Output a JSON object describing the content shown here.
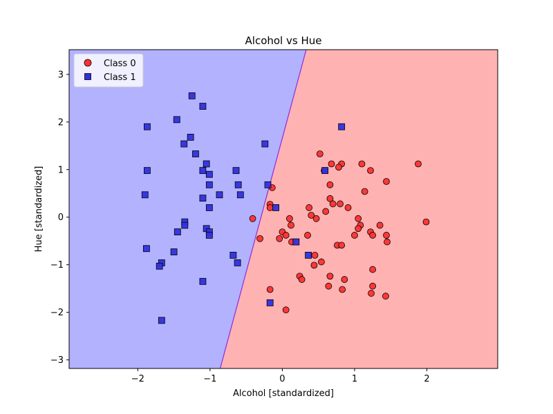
{
  "chart_data": {
    "type": "scatter",
    "title": "Alcohol vs Hue",
    "xlabel": "Alcohol [standardized]",
    "ylabel": "Hue [standardized]",
    "xlim": [
      -2.95,
      2.98
    ],
    "ylim": [
      -3.18,
      3.52
    ],
    "xticks": [
      -2,
      -1,
      0,
      1,
      2
    ],
    "yticks": [
      -3,
      -2,
      -1,
      0,
      1,
      2,
      3
    ],
    "tick_labels_x": [
      "−2",
      "−1",
      "0",
      "1",
      "2"
    ],
    "tick_labels_y": [
      "−3",
      "−2",
      "−1",
      "0",
      "1",
      "2",
      "3"
    ],
    "grid": false,
    "legend_position": "top-left",
    "decision_regions": {
      "boundary": [
        [
          -0.86,
          -3.18
        ],
        [
          0.33,
          3.52
        ]
      ],
      "class0_color": "#ffb2b2",
      "class1_color": "#b2b2ff",
      "boundary_color": "#8a2be2"
    },
    "series": [
      {
        "name": "Class 0",
        "marker": "circle",
        "color": "#ff3030",
        "points": [
          [
            0.52,
            1.33
          ],
          [
            1.88,
            1.12
          ],
          [
            1.1,
            1.12
          ],
          [
            0.82,
            1.12
          ],
          [
            0.68,
            1.12
          ],
          [
            0.78,
            1.05
          ],
          [
            1.22,
            0.98
          ],
          [
            0.58,
            0.98
          ],
          [
            0.66,
            0.68
          ],
          [
            1.14,
            0.54
          ],
          [
            1.44,
            0.75
          ],
          [
            -0.14,
            0.62
          ],
          [
            0.66,
            0.39
          ],
          [
            0.7,
            0.28
          ],
          [
            0.8,
            0.28
          ],
          [
            0.91,
            0.2
          ],
          [
            0.37,
            0.2
          ],
          [
            -0.17,
            0.27
          ],
          [
            -0.17,
            0.2
          ],
          [
            0.6,
            0.12
          ],
          [
            0.4,
            0.04
          ],
          [
            0.47,
            -0.03
          ],
          [
            -0.41,
            -0.03
          ],
          [
            0.1,
            -0.03
          ],
          [
            1.05,
            -0.03
          ],
          [
            1.08,
            -0.17
          ],
          [
            1.35,
            -0.17
          ],
          [
            0.12,
            -0.17
          ],
          [
            1.05,
            -0.24
          ],
          [
            0.0,
            -0.31
          ],
          [
            1.22,
            -0.31
          ],
          [
            0.05,
            -0.38
          ],
          [
            0.35,
            -0.38
          ],
          [
            1.0,
            -0.38
          ],
          [
            1.25,
            -0.38
          ],
          [
            1.44,
            -0.38
          ],
          [
            -0.31,
            -0.45
          ],
          [
            -0.04,
            -0.45
          ],
          [
            0.13,
            -0.52
          ],
          [
            1.45,
            -0.52
          ],
          [
            0.76,
            -0.59
          ],
          [
            0.82,
            -0.59
          ],
          [
            0.45,
            -0.8
          ],
          [
            0.54,
            -0.94
          ],
          [
            0.44,
            -1.01
          ],
          [
            1.25,
            -1.1
          ],
          [
            0.66,
            -1.24
          ],
          [
            0.24,
            -1.24
          ],
          [
            0.27,
            -1.31
          ],
          [
            0.86,
            -1.31
          ],
          [
            0.64,
            -1.45
          ],
          [
            1.25,
            -1.45
          ],
          [
            -0.17,
            -1.52
          ],
          [
            0.83,
            -1.52
          ],
          [
            1.23,
            -1.6
          ],
          [
            1.43,
            -1.66
          ],
          [
            0.05,
            -1.95
          ],
          [
            1.99,
            -0.1
          ]
        ]
      },
      {
        "name": "Class 1",
        "marker": "square",
        "color": "#3030e0",
        "points": [
          [
            -1.25,
            2.55
          ],
          [
            -1.1,
            2.33
          ],
          [
            -1.46,
            2.05
          ],
          [
            -1.87,
            1.9
          ],
          [
            0.82,
            1.9
          ],
          [
            -1.27,
            1.68
          ],
          [
            -1.36,
            1.54
          ],
          [
            -0.24,
            1.54
          ],
          [
            -1.2,
            1.33
          ],
          [
            -1.05,
            1.12
          ],
          [
            -1.87,
            0.98
          ],
          [
            -1.1,
            0.98
          ],
          [
            -0.64,
            0.98
          ],
          [
            0.59,
            0.98
          ],
          [
            -1.01,
            0.9
          ],
          [
            -0.61,
            0.68
          ],
          [
            -1.01,
            0.68
          ],
          [
            -0.2,
            0.68
          ],
          [
            -1.9,
            0.47
          ],
          [
            -0.87,
            0.47
          ],
          [
            -0.58,
            0.47
          ],
          [
            -1.1,
            0.4
          ],
          [
            -1.01,
            0.2
          ],
          [
            -0.09,
            0.2
          ],
          [
            -1.35,
            -0.1
          ],
          [
            -1.35,
            -0.17
          ],
          [
            -1.05,
            -0.24
          ],
          [
            -1.45,
            -0.31
          ],
          [
            -1.01,
            -0.31
          ],
          [
            -1.01,
            -0.38
          ],
          [
            0.19,
            -0.52
          ],
          [
            -1.88,
            -0.66
          ],
          [
            -1.5,
            -0.73
          ],
          [
            -0.68,
            -0.8
          ],
          [
            0.36,
            -0.8
          ],
          [
            -1.67,
            -0.96
          ],
          [
            -0.62,
            -0.96
          ],
          [
            -1.7,
            -1.03
          ],
          [
            -1.1,
            -1.35
          ],
          [
            -0.17,
            -1.8
          ],
          [
            -1.67,
            -2.17
          ]
        ]
      }
    ]
  }
}
